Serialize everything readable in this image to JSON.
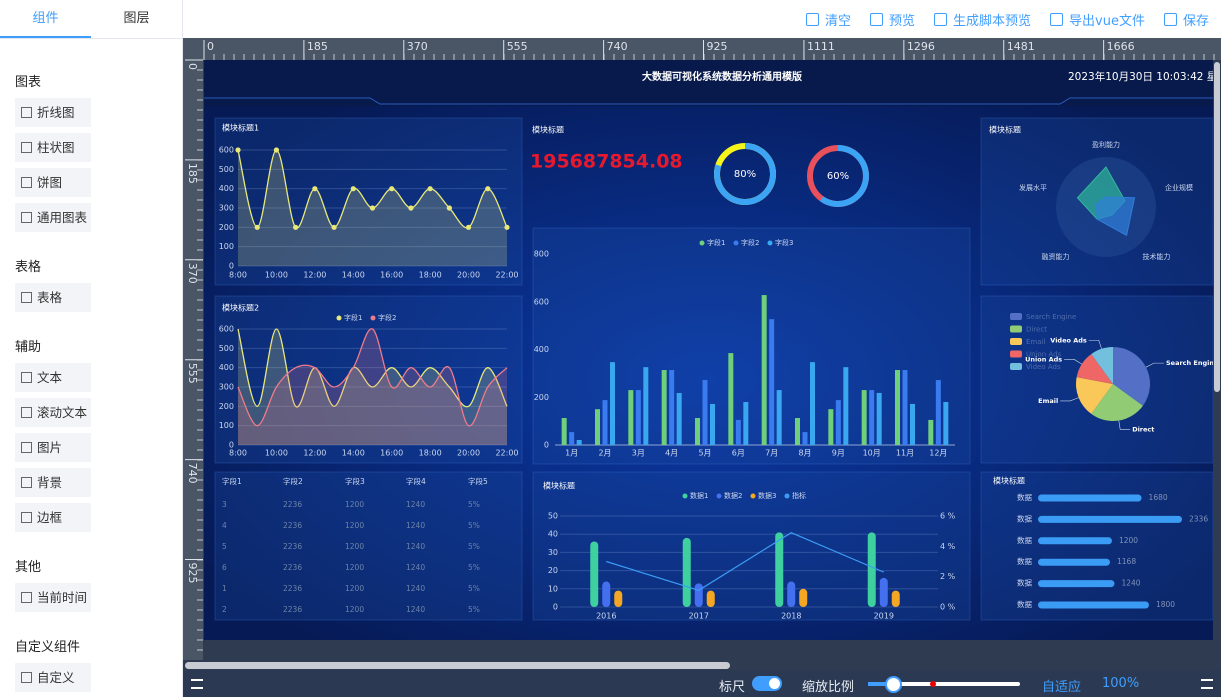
{
  "sidebar": {
    "tabs": [
      "组件",
      "图层"
    ],
    "groups": [
      {
        "title": "图表",
        "items": [
          "折线图",
          "柱状图",
          "饼图",
          "通用图表"
        ]
      },
      {
        "title": "表格",
        "items": [
          "表格"
        ]
      },
      {
        "title": "辅助",
        "items": [
          "文本",
          "滚动文本",
          "图片",
          "背景",
          "边框"
        ]
      },
      {
        "title": "其他",
        "items": [
          "当前时间"
        ]
      },
      {
        "title": "自定义组件",
        "items": [
          "自定义"
        ]
      }
    ]
  },
  "toolbar": [
    "清空",
    "预览",
    "生成脚本预览",
    "导出vue文件",
    "保存"
  ],
  "ruler": {
    "top": [
      0,
      185,
      370,
      555,
      740,
      925,
      1111,
      1296,
      1481,
      1666
    ],
    "left": [
      0,
      185,
      370,
      555,
      740,
      925
    ]
  },
  "screen": {
    "title": "大数据可视化系统数据分析通用模版",
    "datetime": "2023年10月30日 10:03:42 星"
  },
  "table": {
    "headers": [
      "字段1",
      "字段2",
      "字段3",
      "字段4",
      "字段5"
    ],
    "rows": [
      [
        "3",
        "2236",
        "1200",
        "1240",
        "5%"
      ],
      [
        "4",
        "2236",
        "1200",
        "1240",
        "5%"
      ],
      [
        "5",
        "2236",
        "1200",
        "1240",
        "5%"
      ],
      [
        "6",
        "2236",
        "1200",
        "1240",
        "5%"
      ],
      [
        "1",
        "2236",
        "1200",
        "1240",
        "5%"
      ],
      [
        "2",
        "2236",
        "1200",
        "1240",
        "5%"
      ]
    ]
  },
  "chart_data": [
    {
      "type": "line",
      "title": "模块标题1",
      "categories": [
        "8:00",
        null,
        "10:00",
        null,
        "12:00",
        null,
        "14:00",
        null,
        "16:00",
        null,
        "18:00",
        null,
        "20:00",
        null,
        "22:00"
      ],
      "values": [
        600,
        200,
        600,
        200,
        400,
        200,
        400,
        300,
        400,
        300,
        400,
        300,
        200,
        400,
        200
      ],
      "color": "#e8e87a",
      "markers": true,
      "ylim": [
        0,
        600
      ],
      "yticks": [
        0,
        100,
        200,
        300,
        400,
        500,
        600
      ],
      "grid": true
    },
    {
      "type": "line",
      "title": "模块标题2",
      "categories": [
        "8:00",
        null,
        "10:00",
        null,
        "12:00",
        null,
        "14:00",
        null,
        "16:00",
        null,
        "18:00",
        null,
        "20:00",
        null,
        "22:00"
      ],
      "series": [
        {
          "name": "字段1",
          "color": "#e8e87a",
          "values": [
            600,
            200,
            600,
            200,
            400,
            200,
            400,
            300,
            400,
            300,
            400,
            300,
            200,
            400,
            200
          ]
        },
        {
          "name": "字段2",
          "color": "#f07a8a",
          "values": [
            300,
            100,
            300,
            400,
            400,
            300,
            400,
            600,
            300,
            400,
            300,
            400,
            100,
            300,
            400
          ]
        }
      ],
      "markers": false,
      "ylim": [
        0,
        600
      ],
      "yticks": [
        0,
        100,
        200,
        300,
        400,
        500,
        600
      ],
      "grid": true
    },
    {
      "type": "gauge",
      "title": "模块标题",
      "kpi": "195687854.08",
      "values": [
        80,
        60
      ],
      "value_labels": [
        "80%",
        "60%"
      ],
      "colors": [
        "#3ba4f5",
        "#3ba4f5"
      ],
      "track_colors": [
        "#f5f51b",
        "#e8505b"
      ]
    },
    {
      "type": "bar",
      "categories": [
        "1月",
        "2月",
        "3月",
        "4月",
        "5月",
        "6月",
        "7月",
        "8月",
        "9月",
        "10月",
        "11月",
        "12月"
      ],
      "series": [
        {
          "name": "字段1",
          "color": "#6fcf7a",
          "values": [
            113,
            150,
            230,
            314,
            113,
            385,
            628,
            113,
            150,
            230,
            314,
            105
          ]
        },
        {
          "name": "字段2",
          "color": "#3a7bf0",
          "values": [
            54,
            188,
            230,
            314,
            272,
            105,
            527,
            54,
            188,
            230,
            314,
            272
          ]
        },
        {
          "name": "字段3",
          "color": "#3aa8f0",
          "values": [
            21,
            347,
            326,
            218,
            172,
            180,
            230,
            347,
            326,
            218,
            172,
            180
          ]
        }
      ],
      "ylim": [
        0,
        800
      ],
      "yticks": [
        0,
        200,
        400,
        600,
        800
      ]
    },
    {
      "type": "radar",
      "title": "模块标题",
      "indicators": [
        "盈利能力",
        "企业规模",
        "技术能力",
        "融资能力",
        "发展水平"
      ],
      "rlim": [
        0,
        100
      ],
      "series": [
        {
          "color": "#2fb89a",
          "values": [
            80,
            40,
            20,
            30,
            60
          ]
        },
        {
          "color": "#2f7fd8",
          "values": [
            20,
            60,
            70,
            30,
            20
          ]
        }
      ]
    },
    {
      "type": "pie",
      "categories": [
        "Search Engine",
        "Direct",
        "Email",
        "Union Ads",
        "Video Ads"
      ],
      "values": [
        35,
        25,
        18,
        12,
        10
      ],
      "colors": [
        "#5470c6",
        "#91cc75",
        "#fac858",
        "#ee6666",
        "#73c0de"
      ]
    },
    {
      "type": "combo",
      "title": "模块标题",
      "categories": [
        "2016",
        "2017",
        "2018",
        "2019"
      ],
      "series": [
        {
          "name": "数据1",
          "color": "#3fd0a0",
          "values": [
            36,
            38,
            41,
            41
          ]
        },
        {
          "name": "数据2",
          "color": "#4470f0",
          "values": [
            14,
            13,
            14,
            16
          ]
        },
        {
          "name": "数据3",
          "color": "#f5a623",
          "values": [
            9,
            9,
            10,
            9
          ]
        },
        {
          "name": "指标",
          "color": "#3b9cf5",
          "axis": "y2",
          "values": [
            3,
            1.1,
            4.9,
            2.3
          ]
        }
      ],
      "ylim": [
        0,
        50
      ],
      "yticks": [
        0,
        10,
        20,
        30,
        40,
        50
      ],
      "y2lim": [
        0,
        6
      ],
      "y2ticks": [
        {
          "value": 0,
          "label": "0 %"
        },
        {
          "value": 2,
          "label": "2 %"
        },
        {
          "value": 4,
          "label": "4 %"
        },
        {
          "value": 6,
          "label": "6 %"
        }
      ]
    },
    {
      "type": "hbar",
      "title": "模块标题",
      "categories": [
        "数据",
        "数据",
        "数据",
        "数据",
        "数据",
        "数据"
      ],
      "values": [
        1680,
        2336,
        1200,
        1168,
        1240,
        1800
      ],
      "color": "#3b9cf5"
    }
  ],
  "footer": {
    "ruler_label": "标尺",
    "zoom_label": "缩放比例",
    "fit": "自适应",
    "zoom": "100%"
  }
}
